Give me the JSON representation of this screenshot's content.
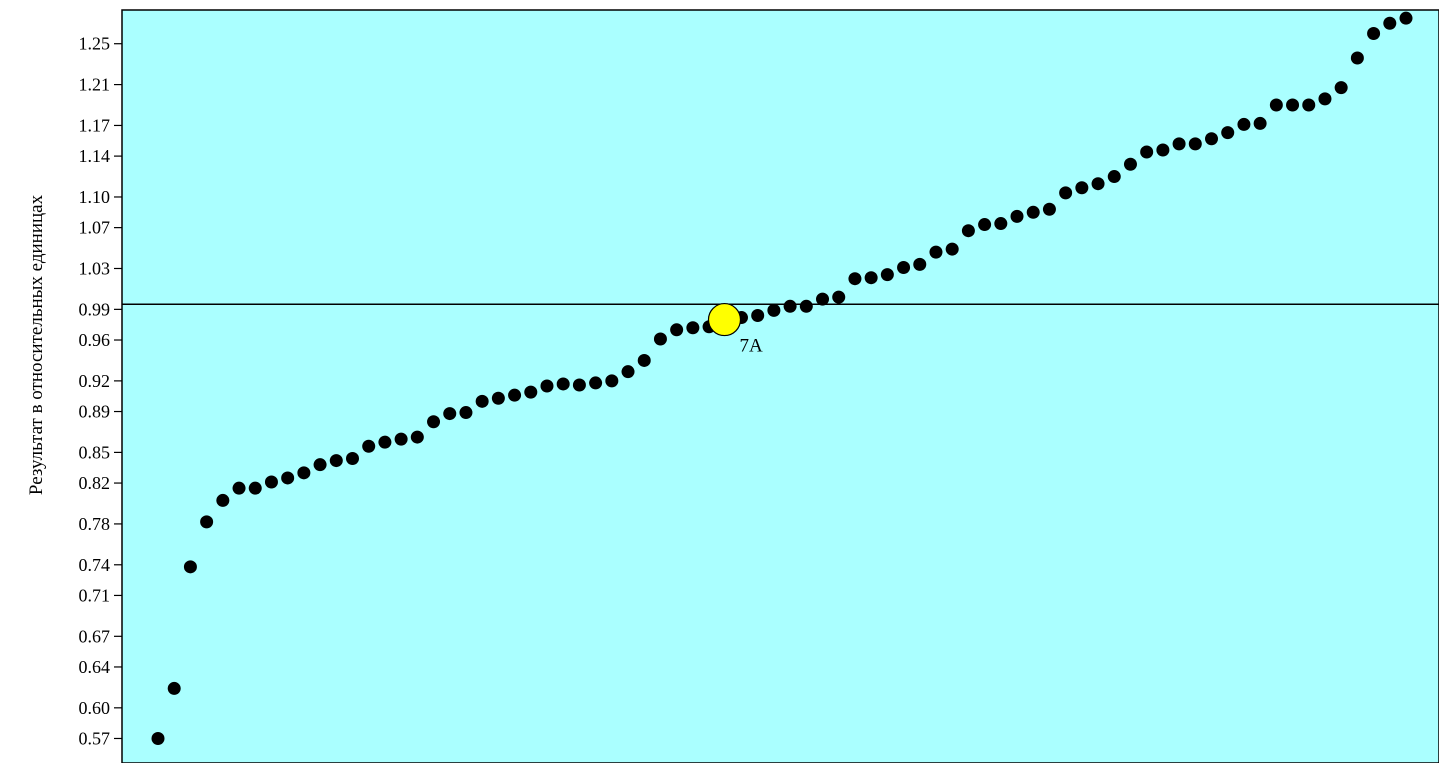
{
  "chart_data": {
    "type": "scatter",
    "title": "",
    "xlabel": "",
    "ylabel": "Результат в относительных единицах",
    "ylim": [
      0.546,
      1.283
    ],
    "yticks": [
      "0.57",
      "0.60",
      "0.64",
      "0.67",
      "0.71",
      "0.74",
      "0.78",
      "0.82",
      "0.85",
      "0.89",
      "0.92",
      "0.96",
      "0.99",
      "1.03",
      "1.07",
      "1.10",
      "1.14",
      "1.17",
      "1.21",
      "1.25"
    ],
    "reference_line": 0.995,
    "grid": false,
    "background_color": "#AAFFFF",
    "marker_color": "#000000",
    "highlight_color": "#FFFF00",
    "series": [
      {
        "values": [
          0.57,
          0.619,
          0.738,
          0.782,
          0.803,
          0.815,
          0.815,
          0.821,
          0.825,
          0.83,
          0.838,
          0.842,
          0.844,
          0.856,
          0.86,
          0.863,
          0.865,
          0.88,
          0.888,
          0.889,
          0.9,
          0.903,
          0.906,
          0.909,
          0.915,
          0.917,
          0.916,
          0.918,
          0.92,
          0.929,
          0.94,
          0.961,
          0.97,
          0.972,
          0.973,
          0.976,
          0.982,
          0.984,
          0.989,
          0.993,
          0.993,
          1.0,
          1.002,
          1.02,
          1.021,
          1.024,
          1.031,
          1.034,
          1.046,
          1.049,
          1.067,
          1.073,
          1.074,
          1.081,
          1.085,
          1.088,
          1.104,
          1.109,
          1.113,
          1.12,
          1.132,
          1.144,
          1.146,
          1.152,
          1.152,
          1.157,
          1.163,
          1.171,
          1.172,
          1.19,
          1.19,
          1.19,
          1.196,
          1.207,
          1.236,
          1.26,
          1.27,
          1.275
        ]
      }
    ],
    "highlight": {
      "label": "7A",
      "index": 36,
      "value": 0.98
    }
  }
}
